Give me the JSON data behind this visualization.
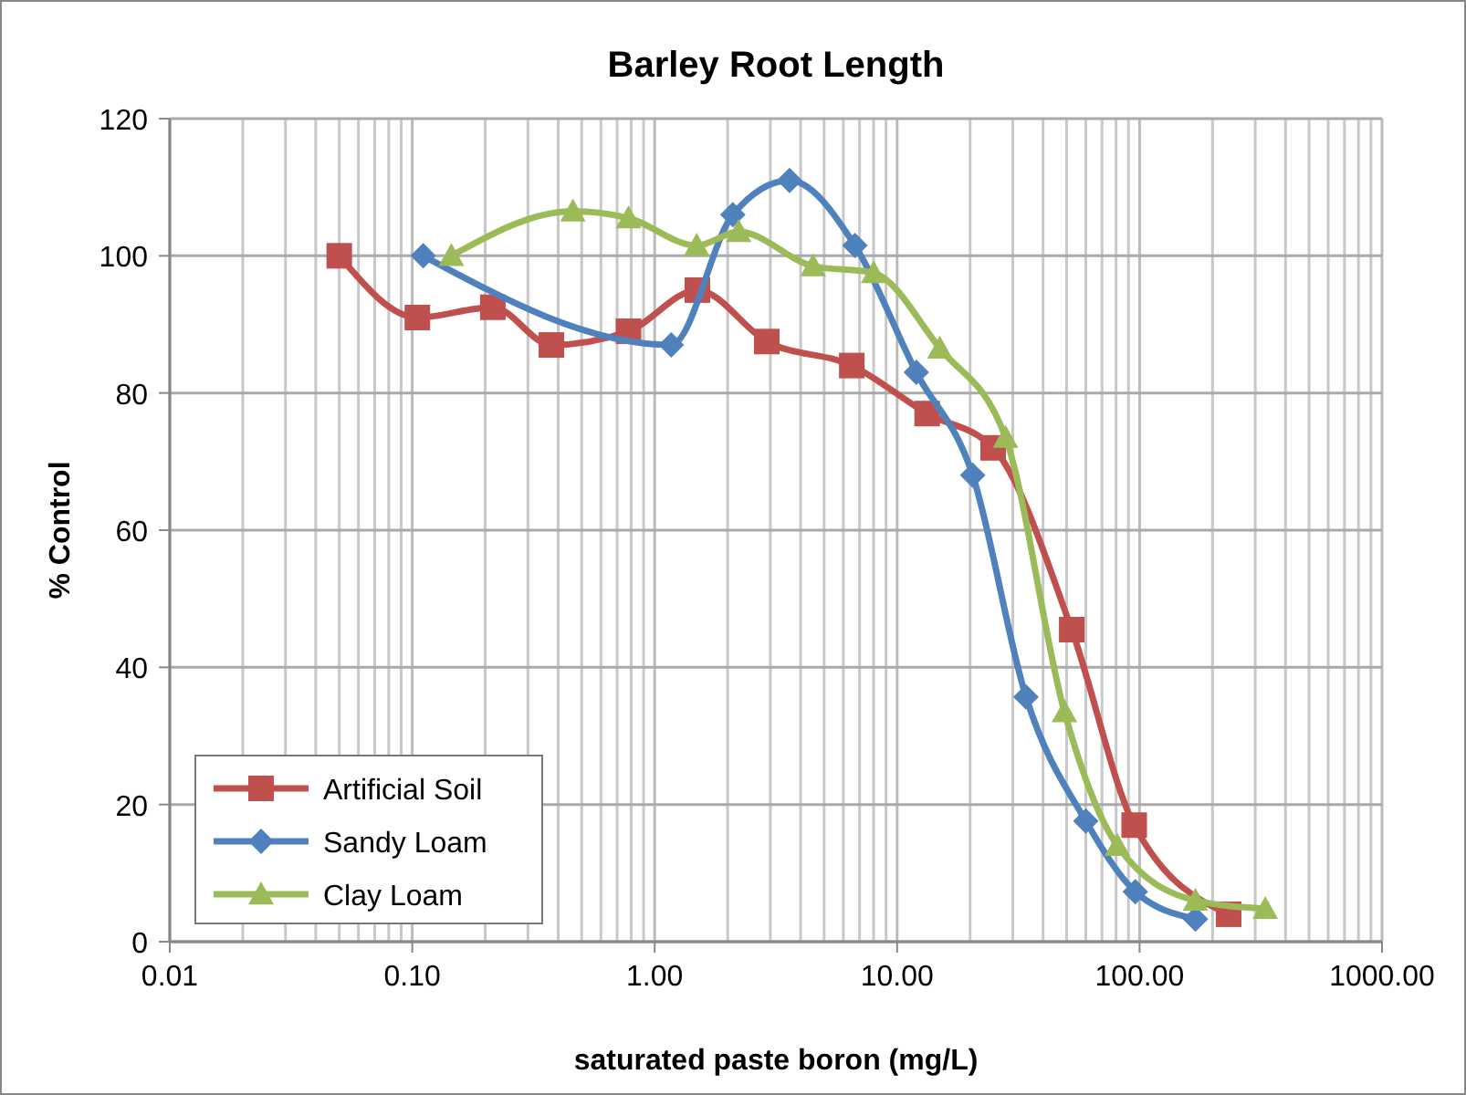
{
  "chart_data": {
    "type": "line",
    "title": "Barley Root Length",
    "xlabel": "saturated paste boron (mg/L)",
    "ylabel": "% Control",
    "log": "x",
    "grid": true,
    "legend": "bottom left",
    "xlim": [
      0.01,
      1000
    ],
    "xticks": [
      0.01,
      {
        "value": 0.1,
        "label": "0.10"
      },
      {
        "value": 1,
        "label": "1.00"
      },
      {
        "value": 10,
        "label": "10.00"
      },
      {
        "value": 100,
        "label": "100.00"
      },
      {
        "value": 1000,
        "label": "1000.00"
      }
    ],
    "ylim": [
      0,
      120
    ],
    "yticks": [
      0,
      20,
      40,
      60,
      80,
      100,
      120
    ],
    "series": [
      {
        "name": "Artificial Soil",
        "color": "#c0504d",
        "marker": "square",
        "x": [
          0.05,
          0.105,
          0.215,
          0.375,
          0.78,
          1.5,
          2.9,
          6.5,
          13.3,
          24.9,
          52.5,
          95,
          233
        ],
        "values": [
          100,
          91,
          92.5,
          87,
          89,
          95,
          87.5,
          84,
          77,
          72,
          45.5,
          17,
          4
        ]
      },
      {
        "name": "Sandy Loam",
        "color": "#4f81bd",
        "marker": "diamond",
        "x": [
          0.111,
          1.17,
          2.1,
          3.6,
          6.7,
          12,
          20.5,
          34,
          60,
          96,
          170
        ],
        "values": [
          100,
          87,
          106,
          111,
          101.5,
          83,
          68,
          35.7,
          17.6,
          7.3,
          3.3
        ]
      },
      {
        "name": "Clay Loam",
        "color": "#9bbb59",
        "marker": "triangle",
        "x": [
          0.145,
          0.46,
          0.78,
          1.49,
          2.22,
          4.5,
          8,
          15,
          28,
          49,
          81,
          170,
          330
        ],
        "values": [
          100,
          106.5,
          105.5,
          101.5,
          103.5,
          98.5,
          97.5,
          86.5,
          73.5,
          33.5,
          14,
          6,
          4.8
        ]
      }
    ]
  }
}
